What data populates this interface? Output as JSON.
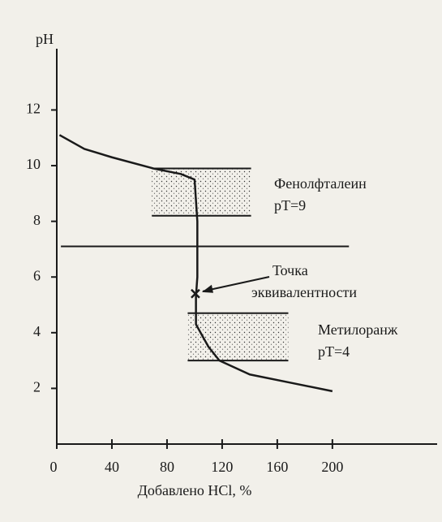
{
  "chart_data": {
    "type": "line",
    "ylabel": "pH",
    "xlabel": "Добавлено HCl, %",
    "x": [
      2,
      20,
      40,
      70,
      90,
      100,
      102,
      102,
      101,
      101,
      110,
      118,
      140,
      170,
      200
    ],
    "values": [
      11.1,
      10.6,
      10.3,
      9.9,
      9.7,
      9.5,
      8,
      6,
      5.3,
      4.3,
      3.5,
      3.0,
      2.5,
      2.2,
      1.9
    ],
    "color": "#1a1a1a",
    "xlim": [
      0,
      276
    ],
    "ylim": [
      0,
      14.2
    ],
    "xticks": [
      0,
      40,
      80,
      120,
      160,
      200
    ],
    "yticks": [
      2,
      4,
      6,
      8,
      10,
      12
    ],
    "hline": {
      "value": 7.1,
      "xrange": [
        3,
        212
      ]
    },
    "bands": [
      {
        "label": [
          "Фенолфталеин",
          "pT=9"
        ],
        "ylim": [
          8.2,
          9.9
        ],
        "xlim": [
          69,
          141
        ]
      },
      {
        "label": [
          "Метилоранж",
          "pT=4"
        ],
        "ylim": [
          3.0,
          4.7
        ],
        "xlim": [
          95,
          168
        ]
      }
    ],
    "equivalence_point": {
      "x": 100.6,
      "y": 5.4,
      "label": [
        "Точка",
        "эквивалентности"
      ]
    }
  }
}
